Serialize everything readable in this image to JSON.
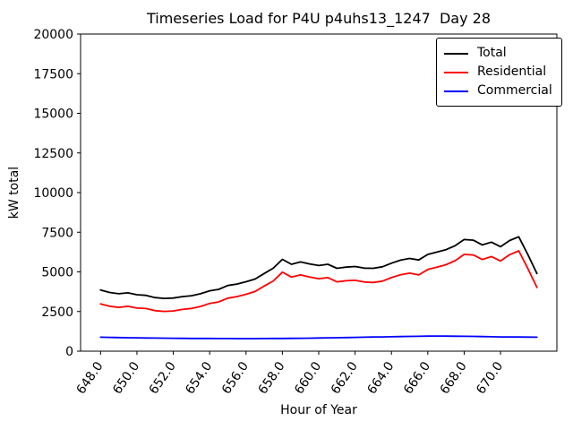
{
  "figure": {
    "title": "Timeseries Load for P4U p4uhs13_1247  Day 28",
    "xlabel": "Hour of Year",
    "ylabel": "kW total"
  },
  "chart_data": {
    "type": "line",
    "title": "Timeseries Load for P4U p4uhs13_1247  Day 28",
    "xlabel": "Hour of Year",
    "ylabel": "kW total",
    "xlim": [
      646.9,
      673.1
    ],
    "ylim": [
      0,
      20000
    ],
    "grid": false,
    "legend_position": "upper right",
    "x_ticks": [
      648,
      650,
      652,
      654,
      656,
      658,
      660,
      662,
      664,
      666,
      668,
      670
    ],
    "x_tick_labels": [
      "648.0",
      "650.0",
      "652.0",
      "654.0",
      "656.0",
      "658.0",
      "660.0",
      "662.0",
      "664.0",
      "666.0",
      "668.0",
      "670.0"
    ],
    "y_ticks": [
      0,
      2500,
      5000,
      7500,
      10000,
      12500,
      15000,
      17500,
      20000
    ],
    "x": [
      648.0,
      648.5,
      649.0,
      649.5,
      650.0,
      650.5,
      651.0,
      651.5,
      652.0,
      652.5,
      653.0,
      653.5,
      654.0,
      654.5,
      655.0,
      655.5,
      656.0,
      656.5,
      657.0,
      657.5,
      658.0,
      658.5,
      659.0,
      659.5,
      660.0,
      660.5,
      661.0,
      661.5,
      662.0,
      662.5,
      663.0,
      663.5,
      664.0,
      664.5,
      665.0,
      665.5,
      666.0,
      666.5,
      667.0,
      667.5,
      668.0,
      668.5,
      669.0,
      669.5,
      670.0,
      670.5,
      671.0,
      671.5,
      672.0
    ],
    "series": [
      {
        "name": "Total",
        "color": "#000000",
        "values": [
          3860,
          3700,
          3620,
          3680,
          3560,
          3520,
          3380,
          3330,
          3350,
          3440,
          3500,
          3620,
          3810,
          3900,
          4140,
          4230,
          4380,
          4550,
          4900,
          5230,
          5790,
          5480,
          5625,
          5500,
          5400,
          5480,
          5225,
          5300,
          5340,
          5240,
          5225,
          5320,
          5550,
          5740,
          5850,
          5750,
          6100,
          6250,
          6400,
          6650,
          7040,
          7000,
          6700,
          6875,
          6590,
          6980,
          7215,
          6100,
          4900
        ]
      },
      {
        "name": "Residential",
        "color": "#ff0000",
        "values": [
          2980,
          2830,
          2760,
          2830,
          2720,
          2690,
          2555,
          2510,
          2535,
          2630,
          2695,
          2820,
          3010,
          3105,
          3345,
          3440,
          3590,
          3760,
          4105,
          4430,
          4985,
          4670,
          4810,
          4680,
          4570,
          4640,
          4375,
          4440,
          4470,
          4360,
          4335,
          4420,
          4640,
          4820,
          4920,
          4810,
          5150,
          5295,
          5450,
          5705,
          6100,
          6070,
          5780,
          5965,
          5690,
          6085,
          6325,
          5215,
          4020
        ]
      },
      {
        "name": "Commercial",
        "color": "#0000ff",
        "values": [
          880,
          870,
          860,
          850,
          840,
          830,
          825,
          820,
          815,
          810,
          805,
          800,
          800,
          795,
          795,
          790,
          790,
          790,
          795,
          800,
          805,
          810,
          815,
          820,
          830,
          840,
          850,
          860,
          870,
          880,
          890,
          900,
          910,
          920,
          930,
          940,
          950,
          955,
          950,
          945,
          940,
          930,
          920,
          910,
          900,
          895,
          890,
          885,
          880
        ]
      }
    ]
  }
}
